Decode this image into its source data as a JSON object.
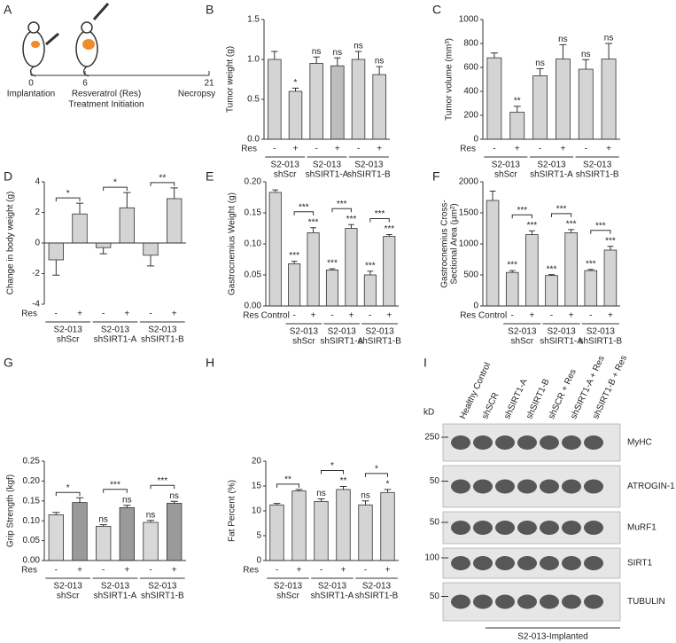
{
  "panel_labels": [
    "A",
    "B",
    "C",
    "D",
    "E",
    "F",
    "G",
    "H",
    "I"
  ],
  "timeline": {
    "ticks": [
      "0",
      "6",
      "21"
    ],
    "events": [
      "Implantation",
      "Resveratrol (Res)",
      "Treatment Initiation",
      "Necropsy"
    ]
  },
  "western_blot": {
    "kd_label": "kD",
    "lanes": [
      "Healthy Control",
      "shSCR",
      "shSIRT1-A",
      "shSIRT1-B",
      "shSCR + Res",
      "shSIRT1-A + Res",
      "shSIRT1-B + Res"
    ],
    "rows": [
      {
        "kd": "250",
        "name": "MyHC"
      },
      {
        "kd": "50",
        "name": "ATROGIN-1"
      },
      {
        "kd": "50",
        "name": "MuRF1"
      },
      {
        "kd": "100",
        "name": "SIRT1"
      },
      {
        "kd": "50",
        "name": "TUBULIN"
      }
    ],
    "footer": "S2-013-Implanted"
  },
  "chart_data": [
    {
      "type": "bar",
      "ylabel": "Tumor weight (g)",
      "x_label": "Res",
      "categories": [
        "-",
        "+",
        "-",
        "+",
        "-",
        "+"
      ],
      "values": [
        1.0,
        0.6,
        0.95,
        0.92,
        1.0,
        0.81
      ],
      "errors": [
        0.1,
        0.04,
        0.08,
        0.1,
        0.1,
        0.1
      ],
      "colors": [
        "#d4d4d4",
        "#d4d4d4",
        "#d4d4d4",
        "#bdbdbd",
        "#d4d4d4",
        "#d4d4d4"
      ],
      "annotations": [
        null,
        "*",
        "ns",
        "ns",
        "ns",
        "ns"
      ],
      "groups": [
        [
          "S2-013",
          "shScr"
        ],
        [
          "S2-013",
          "shSIRT1-A"
        ],
        [
          "S2-013",
          "shSIRT1-B"
        ]
      ],
      "ylim": [
        0,
        1.5
      ],
      "yticks": [
        {
          "value": 0,
          "label": "0.0"
        },
        {
          "value": 0.5,
          "label": "0.5"
        },
        {
          "value": 1,
          "label": "1.0"
        },
        {
          "value": 1.5,
          "label": "1.5"
        }
      ]
    },
    {
      "type": "bar",
      "ylabel": "Tumor volume (mm³)",
      "x_label": "Res",
      "categories": [
        "-",
        "+",
        "-",
        "+",
        "-",
        "+"
      ],
      "values": [
        680,
        225,
        530,
        670,
        585,
        670
      ],
      "errors": [
        40,
        50,
        60,
        120,
        80,
        130
      ],
      "colors": [
        "#d4d4d4",
        "#d4d4d4",
        "#d4d4d4",
        "#d4d4d4",
        "#d4d4d4",
        "#d4d4d4"
      ],
      "annotations": [
        null,
        "**",
        "ns",
        "ns",
        "ns",
        "ns"
      ],
      "groups": [
        [
          "S2-013",
          "shScr"
        ],
        [
          "S2-013",
          "shSIRT1-A"
        ],
        [
          "S2-013",
          "shSIRT1-B"
        ]
      ],
      "ylim": [
        0,
        1000
      ],
      "yticks": [
        0,
        200,
        400,
        600,
        800,
        1000
      ]
    },
    {
      "type": "bar",
      "ylabel": "Change in body weight (g)",
      "x_label": "Res",
      "categories": [
        "-",
        "+",
        "-",
        "+",
        "-",
        "+"
      ],
      "values": [
        -1.1,
        1.9,
        -0.3,
        2.3,
        -0.8,
        2.9
      ],
      "errors": [
        1.0,
        0.7,
        0.4,
        1.0,
        0.7,
        0.7
      ],
      "colors": [
        "#d4d4d4",
        "#d4d4d4",
        "#d4d4d4",
        "#d4d4d4",
        "#d4d4d4",
        "#d4d4d4"
      ],
      "bracket_labels": [
        "*",
        "*",
        "**"
      ],
      "groups": [
        [
          "S2-013",
          "shScr"
        ],
        [
          "S2-013",
          "shSIRT1-A"
        ],
        [
          "S2-013",
          "shSIRT1-B"
        ]
      ],
      "ylim": [
        -4,
        4
      ],
      "yticks": [
        -4,
        -2,
        0,
        2,
        4
      ]
    },
    {
      "type": "bar",
      "ylabel": "Gastrocnemius Weight (g)",
      "x_label": "Res",
      "categories": [
        "Control",
        "-",
        "+",
        "-",
        "+",
        "-",
        "+"
      ],
      "values": [
        0.183,
        0.068,
        0.118,
        0.058,
        0.125,
        0.05,
        0.112
      ],
      "errors": [
        0.004,
        0.004,
        0.008,
        0.002,
        0.006,
        0.006,
        0.003
      ],
      "colors": [
        "#d4d4d4",
        "#d4d4d4",
        "#d4d4d4",
        "#d4d4d4",
        "#d4d4d4",
        "#d4d4d4",
        "#d4d4d4"
      ],
      "annotations": [
        null,
        "***",
        "***",
        "***",
        "***",
        "***",
        "***"
      ],
      "bracket_labels": [
        "***",
        "***",
        "***"
      ],
      "groups": [
        [
          "S2-013",
          "shScr"
        ],
        [
          "S2-013",
          "shSIRT1-A"
        ],
        [
          "S2-013",
          "shSIRT1-B"
        ]
      ],
      "ylim": [
        0,
        0.2
      ],
      "yticks": [
        {
          "value": 0,
          "label": "0.00"
        },
        {
          "value": 0.05,
          "label": "0.05"
        },
        {
          "value": 0.1,
          "label": "0.10"
        },
        {
          "value": 0.15,
          "label": "0.15"
        },
        {
          "value": 0.2,
          "label": "0.20"
        }
      ]
    },
    {
      "type": "bar",
      "ylabel": [
        "Gastrocnemius Cross-",
        "Sectional Area (µm²)"
      ],
      "x_label": "Res",
      "categories": [
        "Control",
        "-",
        "+",
        "-",
        "+",
        "-",
        "+"
      ],
      "values": [
        1700,
        540,
        1150,
        490,
        1180,
        570,
        900
      ],
      "errors": [
        150,
        30,
        60,
        15,
        50,
        20,
        60
      ],
      "colors": [
        "#d4d4d4",
        "#d4d4d4",
        "#d4d4d4",
        "#d4d4d4",
        "#d4d4d4",
        "#d4d4d4",
        "#d4d4d4"
      ],
      "annotations": [
        null,
        "***",
        "***",
        "***",
        "***",
        "***",
        "***"
      ],
      "bracket_labels": [
        "***",
        "***",
        "***"
      ],
      "groups": [
        [
          "S2-013",
          "shScr"
        ],
        [
          "S2-013",
          "shSIRT1-A"
        ],
        [
          "S2-013",
          "shSIRT1-B"
        ]
      ],
      "ylim": [
        0,
        2000
      ],
      "yticks": [
        0,
        500,
        1000,
        1500,
        2000
      ]
    },
    {
      "type": "bar",
      "ylabel": "Grip Strength (kgf)",
      "x_label": "Res",
      "categories": [
        "-",
        "+",
        "-",
        "+",
        "-",
        "+"
      ],
      "values": [
        0.115,
        0.146,
        0.086,
        0.133,
        0.096,
        0.144
      ],
      "errors": [
        0.006,
        0.012,
        0.004,
        0.006,
        0.005,
        0.005
      ],
      "colors": [
        "#d8d8d8",
        "#9a9a9a",
        "#d8d8d8",
        "#9a9a9a",
        "#d8d8d8",
        "#9a9a9a"
      ],
      "annotations": [
        null,
        null,
        "ns",
        "ns",
        "ns",
        "ns"
      ],
      "bracket_labels": [
        "*",
        "***",
        "***"
      ],
      "groups": [
        [
          "S2-013",
          "shScr"
        ],
        [
          "S2-013",
          "shSIRT1-A"
        ],
        [
          "S2-013",
          "shSIRT1-B"
        ]
      ],
      "ylim": [
        0,
        0.25
      ],
      "yticks": [
        {
          "value": 0,
          "label": "0.00"
        },
        {
          "value": 0.05,
          "label": "0.05"
        },
        {
          "value": 0.1,
          "label": "0.10"
        },
        {
          "value": 0.15,
          "label": "0.15"
        },
        {
          "value": 0.2,
          "label": "0.20"
        },
        {
          "value": 0.25,
          "label": "0.25"
        }
      ]
    },
    {
      "type": "bar",
      "ylabel": "Fat Percent (%)",
      "x_label": "Res",
      "categories": [
        "-",
        "+",
        "-",
        "+",
        "-",
        "+"
      ],
      "values": [
        11.2,
        14.0,
        11.9,
        14.3,
        11.2,
        13.7
      ],
      "errors": [
        0.3,
        0.3,
        0.5,
        0.6,
        0.8,
        0.6
      ],
      "colors": [
        "#d4d4d4",
        "#d4d4d4",
        "#d4d4d4",
        "#d4d4d4",
        "#d4d4d4",
        "#d4d4d4"
      ],
      "annotations": [
        null,
        null,
        "ns",
        "**",
        "ns",
        "*"
      ],
      "bracket_labels": [
        "**",
        "*",
        "*"
      ],
      "groups": [
        [
          "S2-013",
          "shScr"
        ],
        [
          "S2-013",
          "shSIRT1-A"
        ],
        [
          "S2-013",
          "shSIRT1-B"
        ]
      ],
      "ylim": [
        0,
        20
      ],
      "yticks": [
        0,
        5,
        10,
        15,
        20
      ]
    }
  ]
}
